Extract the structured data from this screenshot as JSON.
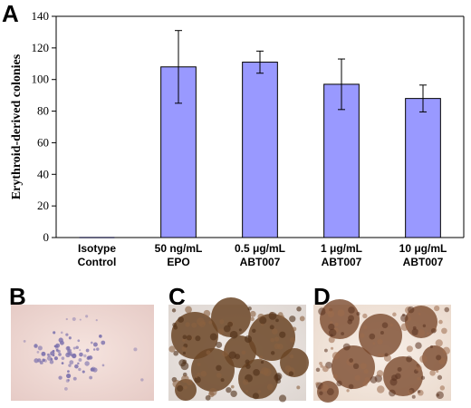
{
  "panels": {
    "a_label": "A",
    "b_label": "B",
    "c_label": "C",
    "d_label": "D"
  },
  "chart_data": {
    "type": "bar",
    "title": "",
    "xlabel": "",
    "ylabel": "Erythroid-derived colonies",
    "ylim": [
      0,
      140
    ],
    "yticks": [
      0,
      20,
      40,
      60,
      80,
      100,
      120,
      140
    ],
    "categories": [
      [
        "Isotype",
        "Control"
      ],
      [
        "50 ng/mL",
        "EPO"
      ],
      [
        "0.5 μg/mL",
        "ABT007"
      ],
      [
        "1 μg/mL",
        "ABT007"
      ],
      [
        "10 μg/mL",
        "ABT007"
      ]
    ],
    "values": [
      0,
      108,
      111,
      97,
      88
    ],
    "error": [
      0,
      23,
      7,
      16,
      8.5
    ],
    "grid": false,
    "bar_color": "#9999ff",
    "bar_edge_color": "#000000"
  },
  "micrographs": {
    "b_colors": {
      "background": "#f2dcd7",
      "cells": "#7d72ad"
    },
    "c_colors": {
      "background": "#ede8e4",
      "mass": "#6b4526"
    },
    "d_colors": {
      "background": "#f5ece4",
      "mass": "#7a4a2d"
    }
  }
}
